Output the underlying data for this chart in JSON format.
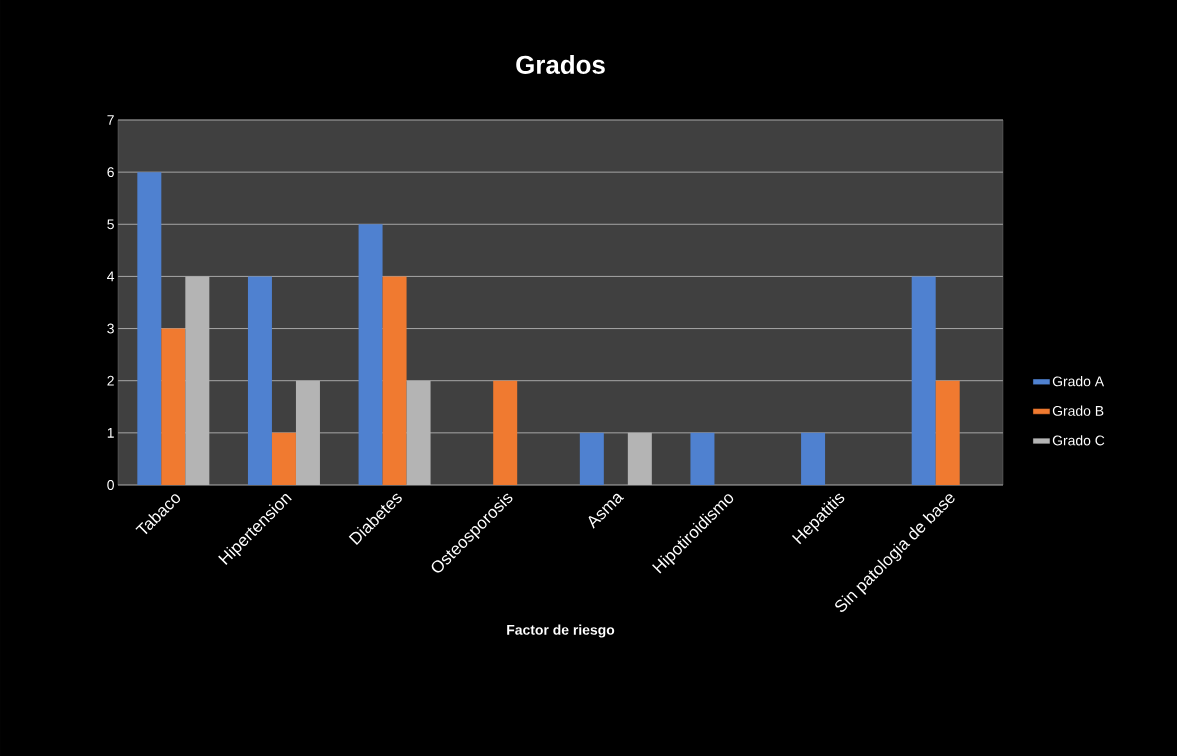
{
  "chart_data": {
    "type": "bar",
    "title": "Grados",
    "xlabel": "Factor de riesgo",
    "categories": [
      "Tabaco",
      "Hipertension",
      "Diabetes",
      "Osteosporosis",
      "Asma",
      "Hipotiroidismo",
      "Hepatitis",
      "Sin patologia de base"
    ],
    "series": [
      {
        "name": "Grado A",
        "color": "#4f81d0",
        "values": [
          6,
          4,
          5,
          0,
          1,
          1,
          1,
          4
        ]
      },
      {
        "name": "Grado B",
        "color": "#f07a30",
        "values": [
          3,
          1,
          4,
          2,
          0,
          0,
          0,
          2
        ]
      },
      {
        "name": "Grado C",
        "color": "#b4b4b4",
        "values": [
          4,
          2,
          2,
          0,
          1,
          0,
          0,
          0
        ]
      }
    ],
    "ylim": [
      0,
      7
    ],
    "yticks": [
      0,
      1,
      2,
      3,
      4,
      5,
      6,
      7
    ],
    "grid": "y",
    "legend": "right"
  }
}
